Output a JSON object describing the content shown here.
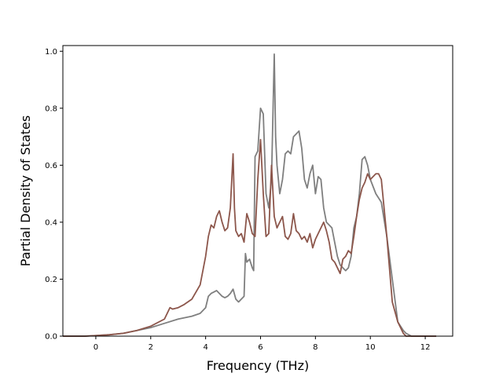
{
  "chart_data": {
    "type": "line",
    "title": "",
    "xlabel": "Frequency (THz)",
    "ylabel": "Partial Density of States",
    "xlim": [
      -1.2,
      13.0
    ],
    "ylim": [
      0.0,
      1.02
    ],
    "xticks": [
      0,
      2,
      4,
      6,
      8,
      10,
      12
    ],
    "yticks": [
      0.0,
      0.2,
      0.4,
      0.6,
      0.8,
      1.0
    ],
    "grid": false,
    "legend": "none",
    "series": [
      {
        "color": "#7f7f7f",
        "x": [
          -1.2,
          -0.4,
          0.0,
          0.5,
          1.0,
          1.5,
          2.0,
          2.5,
          3.0,
          3.5,
          3.8,
          4.0,
          4.1,
          4.2,
          4.3,
          4.4,
          4.5,
          4.6,
          4.7,
          4.8,
          4.9,
          5.0,
          5.1,
          5.2,
          5.3,
          5.4,
          5.45,
          5.5,
          5.6,
          5.7,
          5.75,
          5.8,
          5.9,
          6.0,
          6.1,
          6.2,
          6.3,
          6.4,
          6.5,
          6.55,
          6.6,
          6.7,
          6.8,
          6.9,
          7.0,
          7.1,
          7.2,
          7.3,
          7.4,
          7.5,
          7.6,
          7.7,
          7.8,
          7.9,
          8.0,
          8.1,
          8.2,
          8.3,
          8.4,
          8.5,
          8.6,
          8.7,
          8.8,
          8.9,
          9.0,
          9.1,
          9.2,
          9.3,
          9.4,
          9.5,
          9.6,
          9.7,
          9.8,
          9.9,
          10.0,
          10.2,
          10.4,
          10.6,
          10.8,
          11.0,
          11.2,
          11.3,
          11.5,
          12.4
        ],
        "y": [
          0.0,
          0.0,
          0.002,
          0.005,
          0.01,
          0.02,
          0.03,
          0.045,
          0.06,
          0.07,
          0.08,
          0.1,
          0.14,
          0.15,
          0.155,
          0.16,
          0.15,
          0.14,
          0.135,
          0.14,
          0.15,
          0.165,
          0.13,
          0.12,
          0.13,
          0.14,
          0.29,
          0.26,
          0.27,
          0.24,
          0.23,
          0.63,
          0.65,
          0.8,
          0.78,
          0.5,
          0.45,
          0.55,
          0.99,
          0.7,
          0.6,
          0.5,
          0.55,
          0.64,
          0.65,
          0.64,
          0.7,
          0.71,
          0.72,
          0.66,
          0.55,
          0.52,
          0.57,
          0.6,
          0.5,
          0.56,
          0.55,
          0.45,
          0.4,
          0.39,
          0.38,
          0.33,
          0.28,
          0.25,
          0.24,
          0.23,
          0.24,
          0.28,
          0.38,
          0.42,
          0.5,
          0.62,
          0.63,
          0.6,
          0.55,
          0.5,
          0.47,
          0.35,
          0.2,
          0.05,
          0.02,
          0.01,
          0.0,
          0.0
        ]
      },
      {
        "color": "#8c564b",
        "x": [
          -1.2,
          -0.4,
          0.0,
          0.5,
          1.0,
          1.5,
          2.0,
          2.5,
          2.7,
          2.8,
          3.0,
          3.2,
          3.5,
          3.8,
          4.0,
          4.1,
          4.2,
          4.3,
          4.4,
          4.5,
          4.6,
          4.7,
          4.8,
          4.9,
          5.0,
          5.05,
          5.1,
          5.2,
          5.3,
          5.4,
          5.5,
          5.6,
          5.7,
          5.8,
          5.9,
          6.0,
          6.1,
          6.2,
          6.3,
          6.4,
          6.5,
          6.6,
          6.7,
          6.8,
          6.9,
          7.0,
          7.1,
          7.2,
          7.3,
          7.4,
          7.5,
          7.6,
          7.7,
          7.8,
          7.9,
          8.0,
          8.1,
          8.2,
          8.3,
          8.4,
          8.5,
          8.6,
          8.7,
          8.8,
          8.9,
          9.0,
          9.1,
          9.2,
          9.3,
          9.4,
          9.5,
          9.6,
          9.7,
          9.8,
          9.9,
          10.0,
          10.2,
          10.3,
          10.4,
          10.5,
          10.6,
          10.8,
          11.0,
          11.2,
          11.3,
          11.5,
          12.4
        ],
        "y": [
          0.0,
          0.0,
          0.002,
          0.005,
          0.01,
          0.02,
          0.035,
          0.06,
          0.1,
          0.095,
          0.1,
          0.11,
          0.13,
          0.18,
          0.28,
          0.35,
          0.39,
          0.38,
          0.42,
          0.44,
          0.4,
          0.37,
          0.38,
          0.45,
          0.64,
          0.45,
          0.37,
          0.35,
          0.36,
          0.33,
          0.43,
          0.4,
          0.36,
          0.35,
          0.55,
          0.69,
          0.5,
          0.35,
          0.36,
          0.6,
          0.42,
          0.38,
          0.4,
          0.42,
          0.35,
          0.34,
          0.36,
          0.43,
          0.37,
          0.36,
          0.34,
          0.35,
          0.33,
          0.36,
          0.31,
          0.34,
          0.36,
          0.38,
          0.4,
          0.37,
          0.33,
          0.27,
          0.26,
          0.24,
          0.22,
          0.27,
          0.28,
          0.3,
          0.29,
          0.35,
          0.42,
          0.48,
          0.52,
          0.54,
          0.57,
          0.55,
          0.57,
          0.57,
          0.55,
          0.45,
          0.35,
          0.12,
          0.05,
          0.01,
          0.0,
          0.0,
          0.0
        ]
      }
    ]
  }
}
